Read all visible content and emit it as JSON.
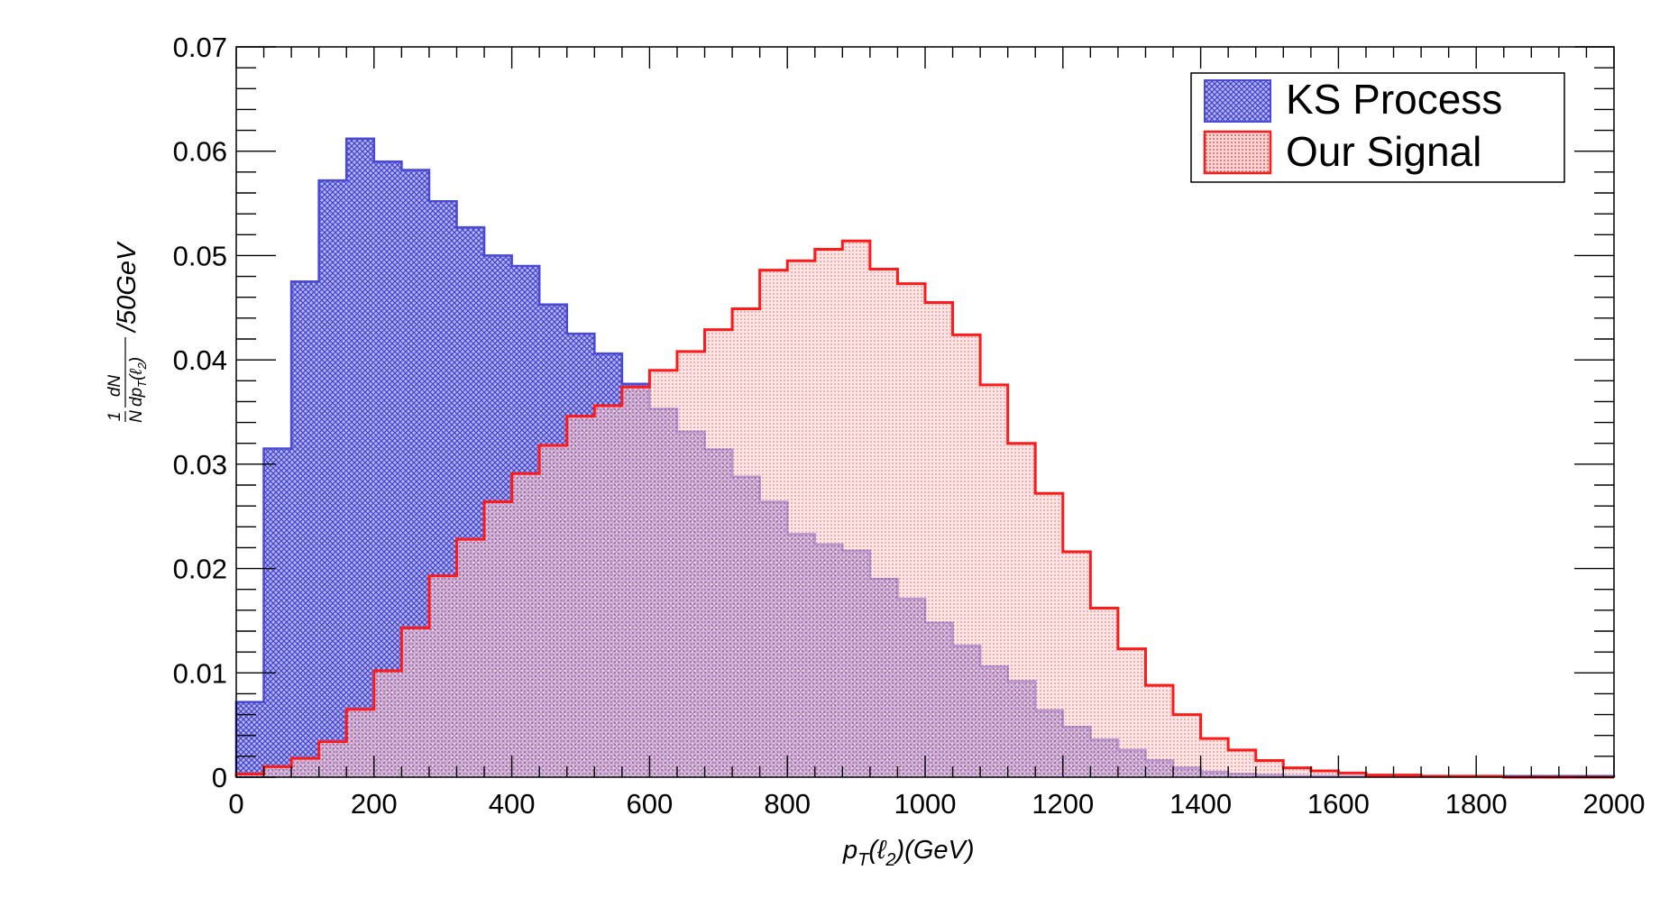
{
  "chart_data": {
    "type": "bar",
    "subtype": "step-histogram",
    "bin_width": 40,
    "x_bin_edges_start": 0,
    "xlim": [
      0,
      2000
    ],
    "ylim": [
      0,
      0.07
    ],
    "x_ticks": [
      0,
      200,
      400,
      600,
      800,
      1000,
      1200,
      1400,
      1600,
      1800,
      2000
    ],
    "y_ticks": [
      0,
      0.01,
      0.02,
      0.03,
      0.04,
      0.05,
      0.06,
      0.07
    ],
    "x_tick_labels": [
      "0",
      "200",
      "400",
      "600",
      "800",
      "1000",
      "1200",
      "1400",
      "1600",
      "1800",
      "2000"
    ],
    "y_tick_labels": [
      "0",
      "0.01",
      "0.02",
      "0.03",
      "0.04",
      "0.05",
      "0.06",
      "0.07"
    ],
    "xlabel": {
      "p": "p",
      "p_sub": "T",
      "rest": "(ℓ",
      "rest_sub": "2",
      "unit": ")(GeV)"
    },
    "ylabel": {
      "frac_top_left": "1",
      "frac_bottom_left": "N",
      "frac_top_right": "dN",
      "frac_bottom_right": "dp",
      "frac_bottom_right_sub": "T",
      "frac_bottom_right_tail": "(ℓ",
      "frac_bottom_right_tail_sub": "2",
      "frac_bottom_right_close": ")",
      "suffix": "/50GeV"
    },
    "grid": false,
    "legend_position": "top-right",
    "series": [
      {
        "name": "KS Process",
        "color": "#4a4ad8",
        "fill": "#9090e0",
        "values": [
          0.0072,
          0.0315,
          0.0475,
          0.0572,
          0.0612,
          0.059,
          0.0582,
          0.0552,
          0.0527,
          0.05,
          0.049,
          0.0453,
          0.0425,
          0.0406,
          0.0377,
          0.0353,
          0.0331,
          0.0314,
          0.0288,
          0.0264,
          0.0233,
          0.0223,
          0.0217,
          0.019,
          0.0171,
          0.0148,
          0.0126,
          0.0106,
          0.0092,
          0.0064,
          0.0048,
          0.0036,
          0.0026,
          0.0016,
          0.0009,
          0.0005,
          0.0003,
          0.0002,
          0.0001,
          0.0001,
          0.0001,
          0.0001,
          0.0001,
          0.0001,
          0.0001,
          0.0001,
          0.0001,
          0.0001,
          0.0001,
          0.0001
        ]
      },
      {
        "name": "Our Signal",
        "color": "#ff1a1a",
        "fill": "#f4a6a6",
        "values": [
          0.0003,
          0.001,
          0.0018,
          0.0034,
          0.0065,
          0.0102,
          0.0143,
          0.0193,
          0.0228,
          0.0264,
          0.0291,
          0.0318,
          0.0346,
          0.0356,
          0.0374,
          0.039,
          0.0408,
          0.0429,
          0.0449,
          0.0486,
          0.0495,
          0.0506,
          0.0514,
          0.0487,
          0.0473,
          0.0455,
          0.0424,
          0.0376,
          0.032,
          0.0272,
          0.0216,
          0.0162,
          0.0123,
          0.0088,
          0.006,
          0.0037,
          0.0026,
          0.0016,
          0.0009,
          0.0006,
          0.0004,
          0.0002,
          0.0002,
          0.0001,
          0.0001,
          0.0001,
          0.0,
          0.0,
          0.0,
          0.0
        ]
      }
    ]
  }
}
